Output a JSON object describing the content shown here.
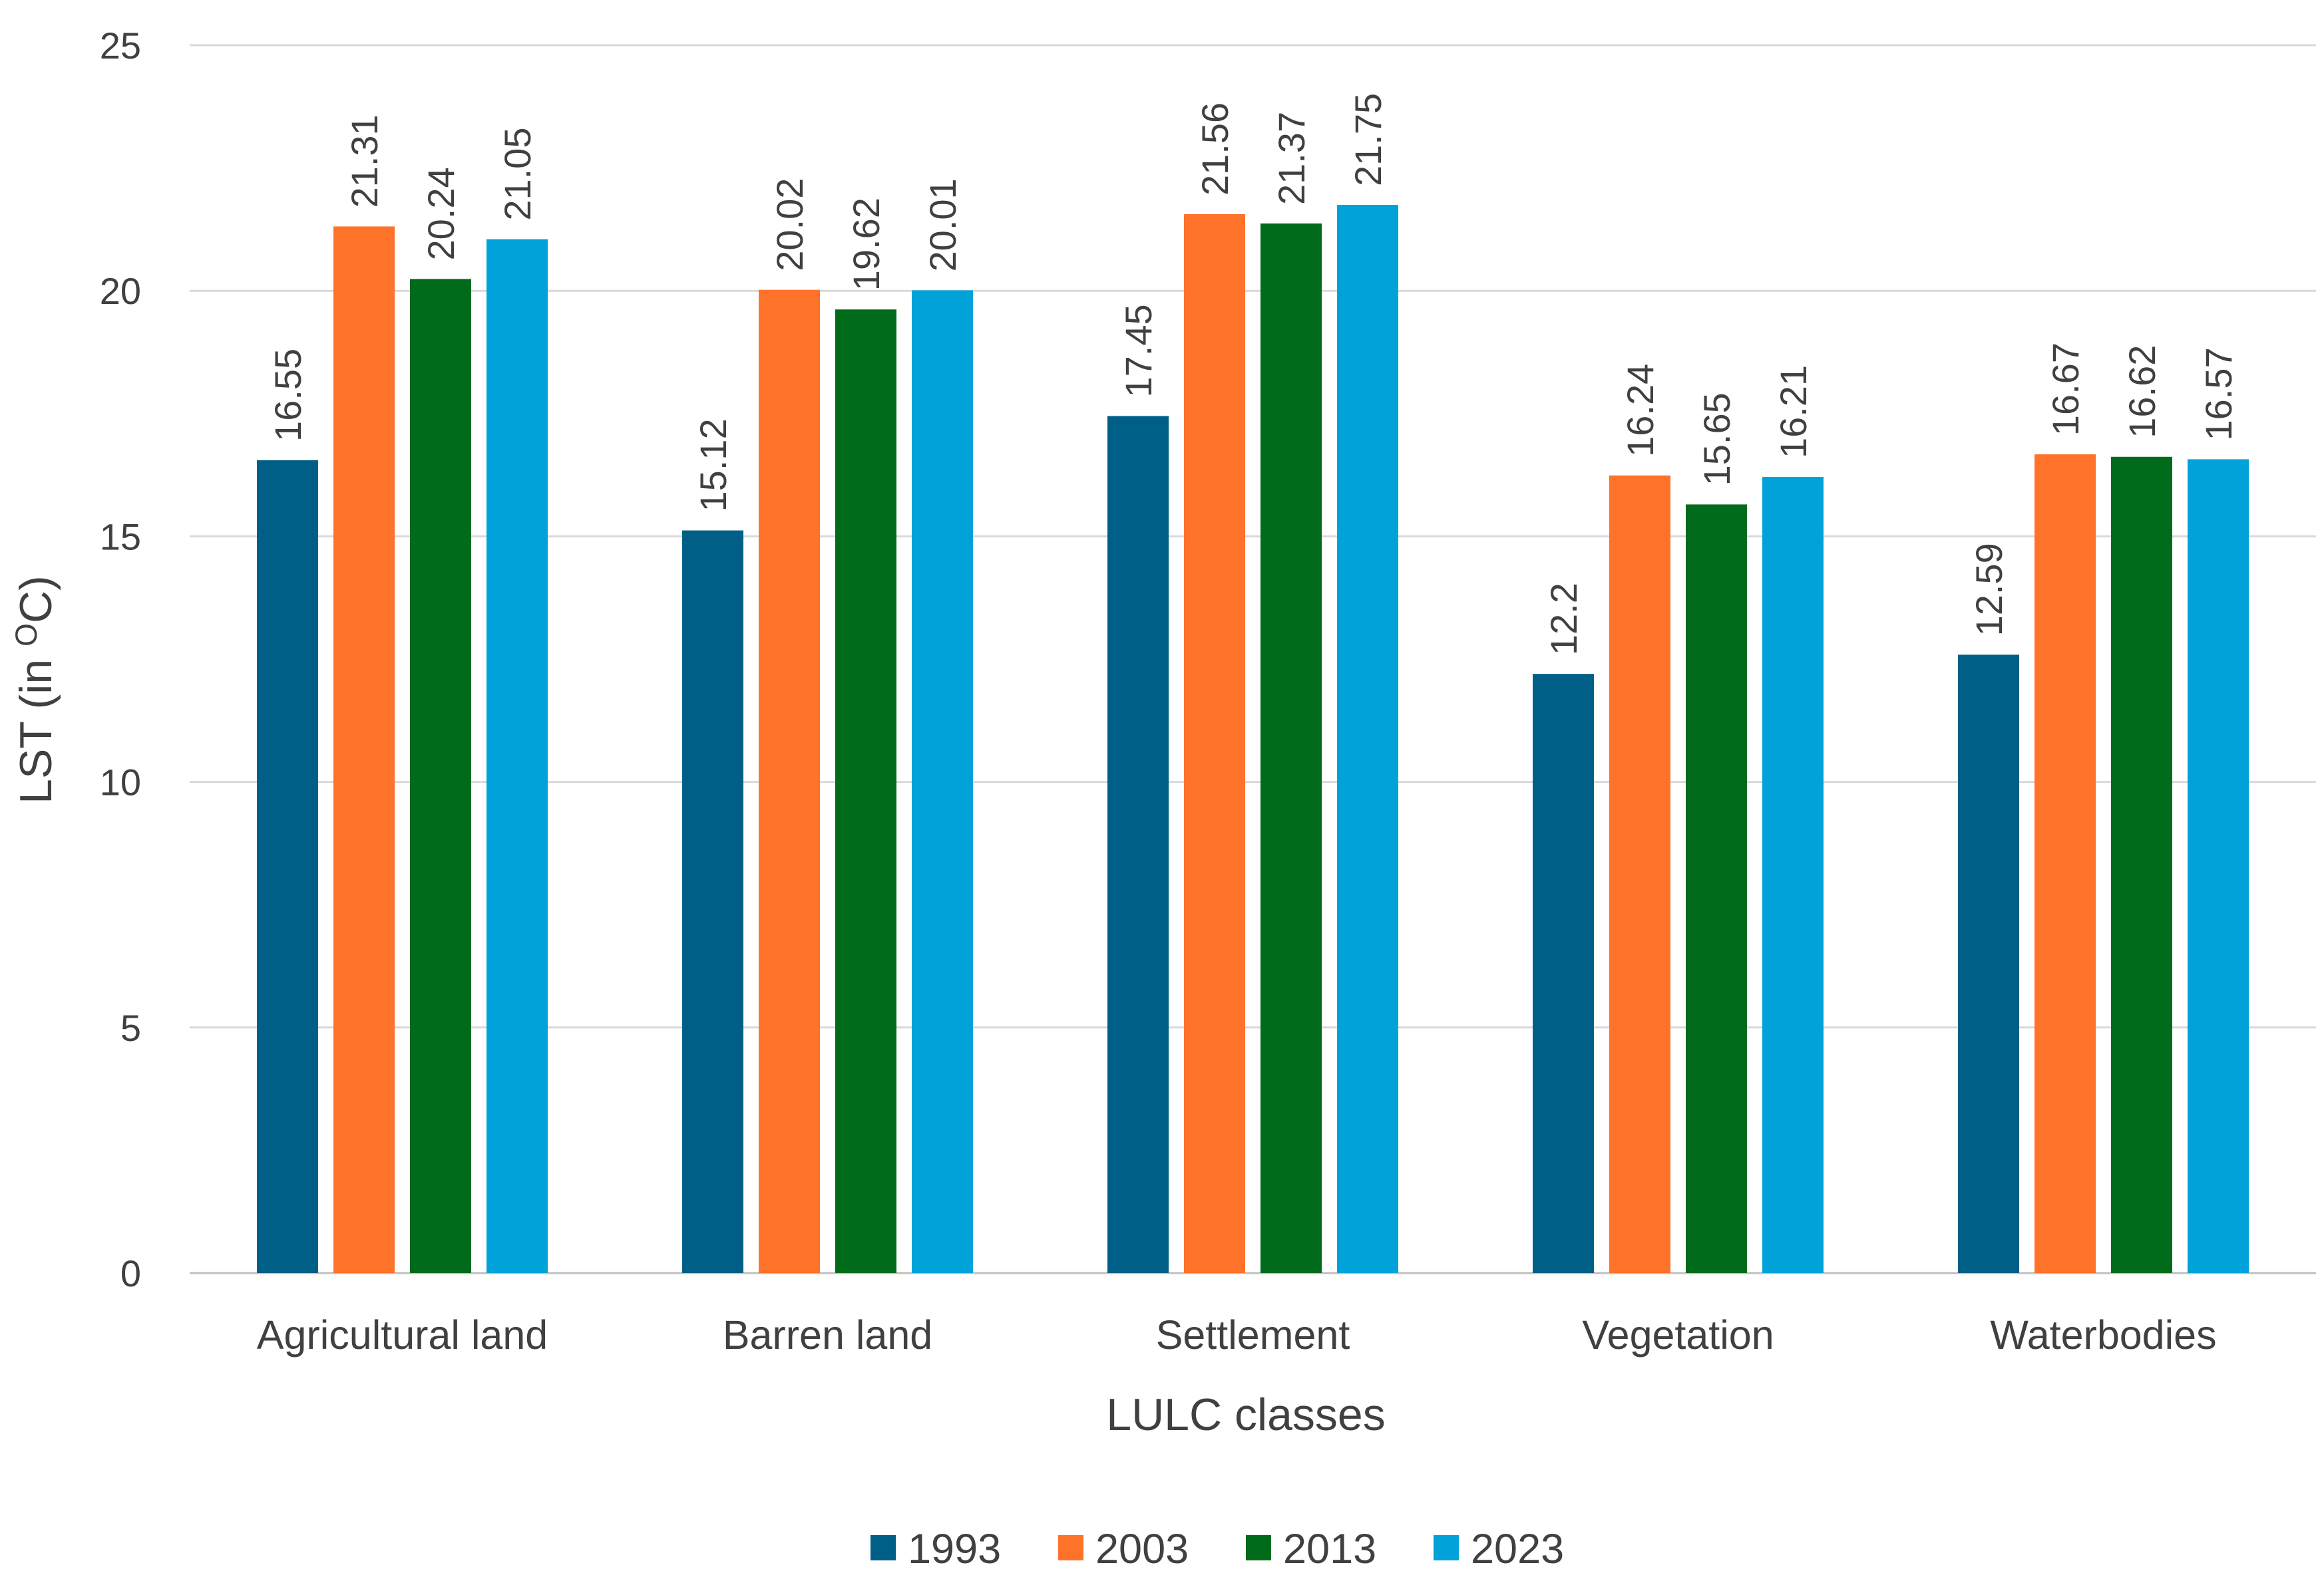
{
  "chart_data": {
    "type": "bar",
    "title": "",
    "xlabel": "LULC classes",
    "ylabel": "LST (in ",
    "ylabel_superscript": "O",
    "ylabel_suffix": "C)",
    "ylim": [
      0,
      25
    ],
    "ytick_step": 5,
    "grid": true,
    "legend_position": "bottom",
    "categories": [
      "Agricultural land",
      "Barren land",
      "Settlement",
      "Vegetation",
      "Waterbodies"
    ],
    "series": [
      {
        "name": "1993",
        "color": "#005f86",
        "values": [
          16.55,
          15.12,
          17.45,
          12.2,
          12.59
        ]
      },
      {
        "name": "2003",
        "color": "#ff722a",
        "values": [
          21.31,
          20.02,
          21.56,
          16.24,
          16.67
        ]
      },
      {
        "name": "2013",
        "color": "#006b1a",
        "values": [
          20.24,
          19.62,
          21.37,
          15.65,
          16.62
        ]
      },
      {
        "name": "2023",
        "color": "#00a2d9",
        "values": [
          21.05,
          20.01,
          21.75,
          16.21,
          16.57
        ]
      }
    ]
  }
}
